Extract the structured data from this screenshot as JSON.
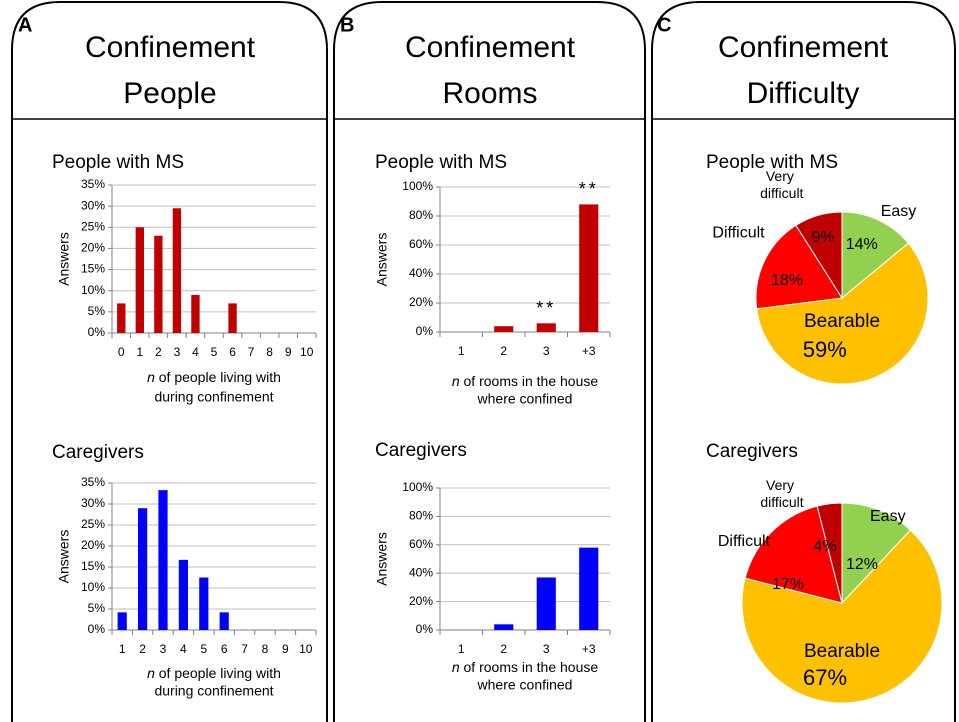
{
  "panels": [
    {
      "letter": "A",
      "title": [
        "Confinement",
        "People"
      ]
    },
    {
      "letter": "B",
      "title": [
        "Confinement",
        "Rooms"
      ]
    },
    {
      "letter": "C",
      "title": [
        "Confinement",
        "Difficulty"
      ]
    }
  ],
  "chart_data": [
    {
      "type": "bar",
      "title": "People with MS",
      "ylabel": "Answers",
      "xlabel": [
        "n of people living with",
        "during confinement"
      ],
      "categories": [
        "0",
        "1",
        "2",
        "3",
        "4",
        "5",
        "6",
        "7",
        "8",
        "9",
        "10"
      ],
      "values": [
        7,
        25,
        23,
        29.5,
        9,
        0,
        7,
        0,
        0,
        0,
        0
      ],
      "color": "#c00000",
      "ylim": [
        0,
        35
      ],
      "yticks": [
        {
          "value": 0,
          "label": "0%"
        },
        {
          "value": 5,
          "label": "5%"
        },
        {
          "value": 10,
          "label": "10%"
        },
        {
          "value": 15,
          "label": "15%"
        },
        {
          "value": 20,
          "label": "20%"
        },
        {
          "value": 25,
          "label": "25%"
        },
        {
          "value": 30,
          "label": "30%"
        },
        {
          "value": 35,
          "label": "35%"
        }
      ],
      "grid": true
    },
    {
      "type": "bar",
      "title": "Caregivers",
      "ylabel": "Answers",
      "xlabel": [
        "n of people living with",
        "during confinement"
      ],
      "categories": [
        "1",
        "2",
        "3",
        "4",
        "5",
        "6",
        "7",
        "8",
        "9",
        "10"
      ],
      "values": [
        4.2,
        29,
        33.3,
        16.7,
        12.5,
        4.2,
        0,
        0,
        0,
        0
      ],
      "color": "#0000ff",
      "ylim": [
        0,
        35
      ],
      "yticks": [
        {
          "value": 0,
          "label": "0%"
        },
        {
          "value": 5,
          "label": "5%"
        },
        {
          "value": 10,
          "label": "10%"
        },
        {
          "value": 15,
          "label": "15%"
        },
        {
          "value": 20,
          "label": "20%"
        },
        {
          "value": 25,
          "label": "25%"
        },
        {
          "value": 30,
          "label": "30%"
        },
        {
          "value": 35,
          "label": "35%"
        }
      ],
      "grid": true
    },
    {
      "type": "bar",
      "title": "People with MS",
      "ylabel": "Answers",
      "xlabel": [
        "n of rooms in the house",
        "where confined"
      ],
      "categories": [
        "1",
        "2",
        "3",
        "+3"
      ],
      "values": [
        0,
        4,
        6,
        88
      ],
      "color": "#c00000",
      "annotations": [
        {
          "text": "**",
          "x": "3"
        },
        {
          "text": "**",
          "x": "+3"
        }
      ],
      "ylim": [
        0,
        100
      ],
      "yticks": [
        {
          "value": 0,
          "label": "0%"
        },
        {
          "value": 20,
          "label": "20%"
        },
        {
          "value": 40,
          "label": "40%"
        },
        {
          "value": 60,
          "label": "60%"
        },
        {
          "value": 80,
          "label": "80%"
        },
        {
          "value": 100,
          "label": "100%"
        }
      ],
      "grid": true
    },
    {
      "type": "bar",
      "title": "Caregivers",
      "ylabel": "Answers",
      "xlabel": [
        "n of rooms in the house",
        "where confined"
      ],
      "categories": [
        "1",
        "2",
        "3",
        "+3"
      ],
      "values": [
        0,
        4,
        37,
        58
      ],
      "color": "#0000ff",
      "ylim": [
        0,
        100
      ],
      "yticks": [
        {
          "value": 0,
          "label": "0%"
        },
        {
          "value": 20,
          "label": "20%"
        },
        {
          "value": 40,
          "label": "40%"
        },
        {
          "value": 60,
          "label": "60%"
        },
        {
          "value": 80,
          "label": "80%"
        },
        {
          "value": 100,
          "label": "100%"
        }
      ],
      "grid": true
    },
    {
      "type": "pie",
      "title": "People with MS",
      "categories": [
        "Easy",
        "Bearable",
        "Difficult",
        "Very difficult"
      ],
      "values": [
        14,
        59,
        18,
        9
      ],
      "value_labels": [
        "14%",
        "59%",
        "18%",
        "9%"
      ],
      "colors": [
        "#92d050",
        "#ffc000",
        "#ff0000",
        "#c00000"
      ]
    },
    {
      "type": "pie",
      "title": "Caregivers",
      "categories": [
        "Easy",
        "Bearable",
        "Difficult",
        "Very difficult"
      ],
      "values": [
        12,
        67,
        17,
        4
      ],
      "value_labels": [
        "12%",
        "67%",
        "17%",
        "4%"
      ],
      "colors": [
        "#92d050",
        "#ffc000",
        "#ff0000",
        "#c00000"
      ]
    }
  ]
}
